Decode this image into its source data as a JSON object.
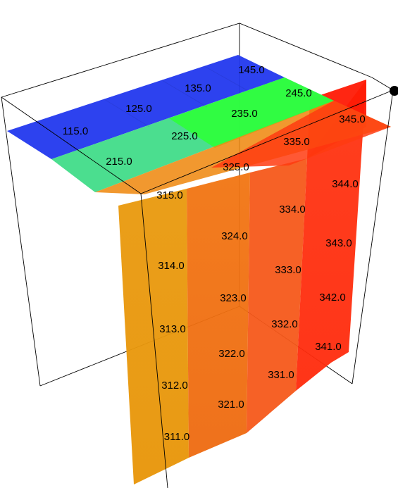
{
  "colors": {
    "background": "#ffffff",
    "box_edges": "#000000",
    "top_row_blue": "#2233ee",
    "top_row_green_cyan": "#33dd88",
    "top_row_red": "#ff2200",
    "front_orange": "#e8960a",
    "middle_orange": "#f06a10",
    "back_orange": "#f85818",
    "right_red": "#ff3010",
    "corner_marker": "#000000"
  },
  "layers": {
    "row_1xx": [
      "115.0",
      "125.0",
      "135.0",
      "145.0"
    ],
    "row_2xx": [
      "215.0",
      "225.0",
      "235.0",
      "245.0"
    ],
    "row_345": "345.0",
    "layer_31x": [
      "311.0",
      "312.0",
      "313.0",
      "314.0",
      "315.0"
    ],
    "layer_32x": [
      "321.0",
      "322.0",
      "323.0",
      "324.0",
      "325.0"
    ],
    "layer_33x": [
      "331.0",
      "332.0",
      "333.0",
      "334.0",
      "335.0"
    ],
    "layer_34x": [
      "341.0",
      "342.0",
      "343.0",
      "344.0"
    ]
  }
}
